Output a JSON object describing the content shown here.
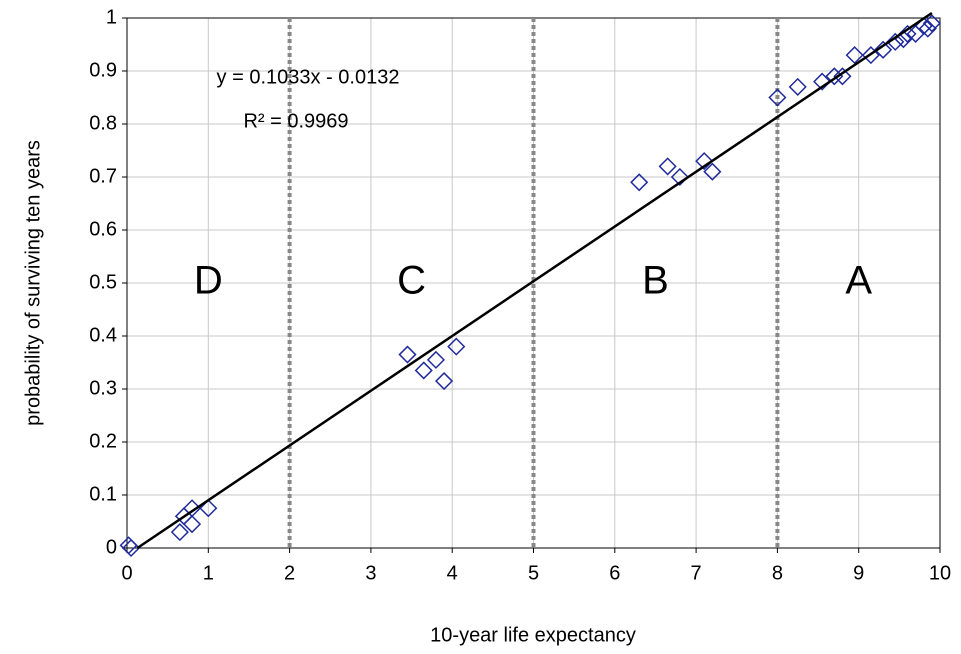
{
  "chart_data": {
    "type": "scatter",
    "x_label": "10-year life expectancy",
    "y_label": "probability of surviving ten years",
    "x": [
      0.02,
      0.05,
      0.65,
      0.7,
      0.8,
      0.8,
      1.0,
      3.45,
      3.65,
      3.8,
      3.9,
      4.05,
      6.3,
      6.65,
      6.8,
      7.1,
      7.2,
      8.0,
      8.25,
      8.55,
      8.7,
      8.8,
      8.95,
      9.15,
      9.3,
      9.45,
      9.55,
      9.6,
      9.7,
      9.8,
      9.85,
      9.9
    ],
    "y": [
      0.005,
      0.0,
      0.03,
      0.06,
      0.075,
      0.045,
      0.075,
      0.365,
      0.335,
      0.355,
      0.315,
      0.38,
      0.69,
      0.72,
      0.7,
      0.73,
      0.71,
      0.85,
      0.87,
      0.88,
      0.89,
      0.89,
      0.93,
      0.93,
      0.94,
      0.955,
      0.96,
      0.97,
      0.97,
      0.985,
      0.98,
      0.99
    ],
    "color": "#1f2a9c",
    "trendline": {
      "slope": 0.1033,
      "intercept": -0.0132,
      "color": "#000000"
    },
    "annotations": [
      "y = 0.1033x - 0.0132",
      "R² = 0.9969"
    ],
    "regions": [
      "D",
      "C",
      "B",
      "A"
    ],
    "region_boundaries": [
      2,
      5,
      8
    ],
    "xlim": [
      0,
      10
    ],
    "ylim": [
      0,
      1
    ],
    "xticks": [
      0,
      1,
      2,
      3,
      4,
      5,
      6,
      7,
      8,
      9,
      10
    ],
    "yticks": [
      0,
      0.1,
      0.2,
      0.3,
      0.4,
      0.5,
      0.6,
      0.7,
      0.8,
      0.9,
      1
    ],
    "grid": true
  }
}
